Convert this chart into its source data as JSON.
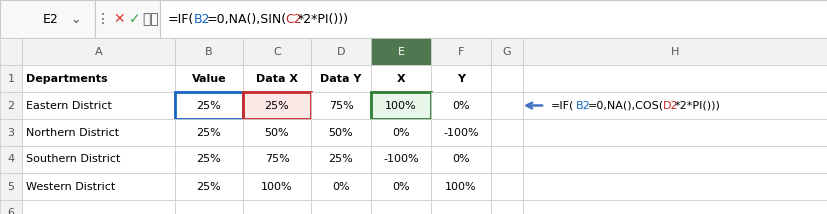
{
  "formula_bar_cell": "E2",
  "formula_bar_formula": "=IF(B2=0,NA(),SIN(C2*2*PI()))",
  "formula_parts": [
    [
      "=IF(",
      "#000000"
    ],
    [
      "B2",
      "#1565c0"
    ],
    [
      "=0,NA(),SIN(",
      "#000000"
    ],
    [
      "C2",
      "#c62828"
    ],
    [
      "*2*PI()))",
      "#000000"
    ]
  ],
  "h2_formula_parts": [
    [
      "=IF(",
      "#000000"
    ],
    [
      "B2",
      "#1565c0"
    ],
    [
      "=0,NA(),COS(",
      "#000000"
    ],
    [
      "D2",
      "#c62828"
    ],
    [
      "*2*PI()))",
      "#000000"
    ]
  ],
  "col_labels": [
    "A",
    "B",
    "C",
    "D",
    "E",
    "F",
    "G",
    "H"
  ],
  "row_labels": [
    "1",
    "2",
    "3",
    "4",
    "5",
    "6"
  ],
  "row1": [
    "Departments",
    "Value",
    "Data X",
    "Data Y",
    "X",
    "Y",
    "",
    ""
  ],
  "rows": [
    [
      "Eastern District",
      "25%",
      "25%",
      "75%",
      "100%",
      "0%",
      "",
      ""
    ],
    [
      "Northern District",
      "25%",
      "50%",
      "50%",
      "0%",
      "-100%",
      "",
      ""
    ],
    [
      "Southern District",
      "25%",
      "75%",
      "25%",
      "-100%",
      "0%",
      "",
      ""
    ],
    [
      "Western District",
      "25%",
      "100%",
      "0%",
      "0%",
      "100%",
      "",
      ""
    ]
  ],
  "bg": "#ffffff",
  "grid": "#c8c8c8",
  "header_bg": "#f2f2f2",
  "E_header_bg": "#507850",
  "E_header_fg": "#ffffff",
  "cell_B2_border": "#1565c0",
  "cell_C2_border": "#c62828",
  "cell_C2_bg": "#fde8e8",
  "cell_E2_border": "#2e7d32",
  "cell_E2_bg": "#e8f5e9",
  "arrow_color": "#4472c4",
  "fb_bg": "#f8f8f8",
  "fb_formula_bg": "#ffffff"
}
